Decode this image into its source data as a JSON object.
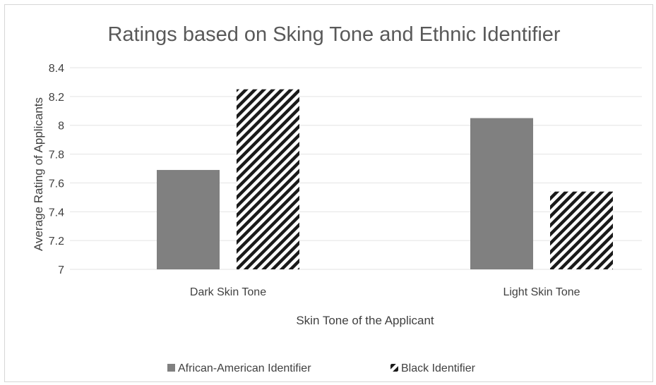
{
  "chart_data": {
    "type": "bar",
    "title": "Ratings based on Sking Tone and Ethnic Identifier",
    "xlabel": "Skin Tone of the Applicant",
    "ylabel": "Average Rating of Applicants",
    "categories": [
      "Dark Skin Tone",
      "Light Skin Tone"
    ],
    "series": [
      {
        "name": "African-American Identifier",
        "values": [
          7.69,
          8.05
        ],
        "color": "#808080",
        "pattern": "solid"
      },
      {
        "name": "Black Identifier",
        "values": [
          8.25,
          7.54
        ],
        "color": "#1a1a1a",
        "pattern": "diagonal-hatch"
      }
    ],
    "ylim": [
      7,
      8.4
    ],
    "yticks": [
      7,
      7.2,
      7.4,
      7.6,
      7.8,
      8,
      8.2,
      8.4
    ],
    "ytick_labels": [
      "7",
      "7.2",
      "7.4",
      "7.6",
      "7.8",
      "8",
      "8.2",
      "8.4"
    ],
    "grid": "horizontal",
    "legend_position": "bottom"
  }
}
